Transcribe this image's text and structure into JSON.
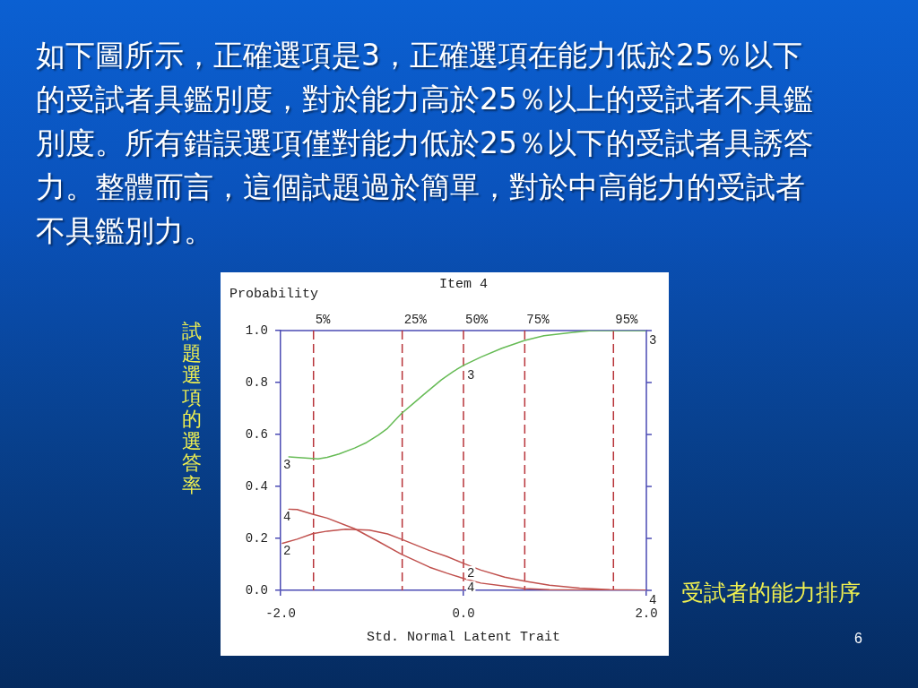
{
  "chart_data": {
    "type": "line",
    "title": "Item 4",
    "xlabel": "Std. Normal Latent Trait",
    "ylabel": "Probability",
    "xlim": [
      -2,
      2
    ],
    "xticks": [
      {
        "value": -2,
        "label": "-2.0"
      },
      {
        "value": 0,
        "label": "0.0"
      },
      {
        "value": 2,
        "label": "2.0"
      }
    ],
    "ylim": [
      0,
      1
    ],
    "yticks": [
      {
        "value": 0,
        "label": "0.0"
      },
      0.2,
      0.4,
      0.6,
      0.8,
      {
        "value": 1,
        "label": "1.0"
      }
    ],
    "marker": "none",
    "series": [
      {
        "name": "3",
        "color": "#66bb55",
        "x": [
          -1.91,
          -1.66,
          -1.59,
          -1.49,
          -1.36,
          -1.19,
          -1.06,
          -0.93,
          -0.83,
          -0.68,
          -0.54,
          -0.44,
          -0.24,
          -0.11,
          0,
          0.19,
          0.42,
          0.67,
          0.88,
          1.2,
          1.4,
          1.99
        ],
        "values": [
          0.514,
          0.508,
          0.506,
          0.512,
          0.525,
          0.548,
          0.569,
          0.598,
          0.624,
          0.68,
          0.722,
          0.752,
          0.811,
          0.843,
          0.866,
          0.898,
          0.932,
          0.962,
          0.98,
          0.993,
          1.0,
          1.0
        ]
      },
      {
        "name": "2",
        "color": "#c0504d",
        "x": [
          -1.98,
          -1.82,
          -1.65,
          -1.49,
          -1.29,
          -1.03,
          -0.83,
          -0.68,
          -0.37,
          -0.18,
          0,
          0.19,
          0.45,
          0.67,
          0.94,
          1.27,
          1.6,
          1.99
        ],
        "values": [
          0.181,
          0.197,
          0.218,
          0.228,
          0.235,
          0.232,
          0.217,
          0.197,
          0.153,
          0.13,
          0.104,
          0.078,
          0.051,
          0.035,
          0.02,
          0.009,
          0.003,
          0.001
        ]
      },
      {
        "name": "4",
        "color": "#c0504d",
        "x": [
          -1.91,
          -1.82,
          -1.65,
          -1.49,
          -1.19,
          -0.93,
          -0.68,
          -0.37,
          -0.18,
          0,
          0.19,
          0.45,
          0.67,
          0.94,
          1.43,
          1.99
        ],
        "values": [
          0.312,
          0.311,
          0.293,
          0.278,
          0.237,
          0.188,
          0.139,
          0.089,
          0.066,
          0.046,
          0.028,
          0.016,
          0.007,
          0.003,
          0.002,
          0
        ]
      }
    ],
    "ref_lines": [
      {
        "axis": "x",
        "value": -1.64,
        "color": "#b8343a",
        "line_style": "dashed"
      },
      {
        "axis": "x",
        "value": -0.67,
        "color": "#b8343a",
        "line_style": "dashed"
      },
      {
        "axis": "x",
        "value": 0,
        "color": "#b8343a",
        "line_style": "dashed"
      },
      {
        "axis": "x",
        "value": 0.67,
        "color": "#b8343a",
        "line_style": "dashed"
      },
      {
        "axis": "x",
        "value": 1.64,
        "color": "#b8343a",
        "line_style": "dashed"
      }
    ],
    "annotations": [
      "如下圖所示，正確選項是3，正確選項在能力低於25％以下的受試者具鑑別度，對於能力高於25％以上的受試者不具鑑別度。所有錯誤選項僅對能力低於25％以下的受試者具誘答力。整體而言，這個試題過於簡單，對於中高能力的受試者不具鑑別力。",
      "試題選項的選答率",
      "受試者的能力排序",
      "6",
      {
        "text": "5%",
        "x": -1.64,
        "y": 1
      },
      {
        "text": "25%",
        "x": -0.67,
        "y": 1
      },
      {
        "text": "50%",
        "x": 0,
        "y": 1
      },
      {
        "text": "75%",
        "x": 0.67,
        "y": 1
      },
      {
        "text": "95%",
        "x": 1.64,
        "y": 1
      }
    ]
  }
}
